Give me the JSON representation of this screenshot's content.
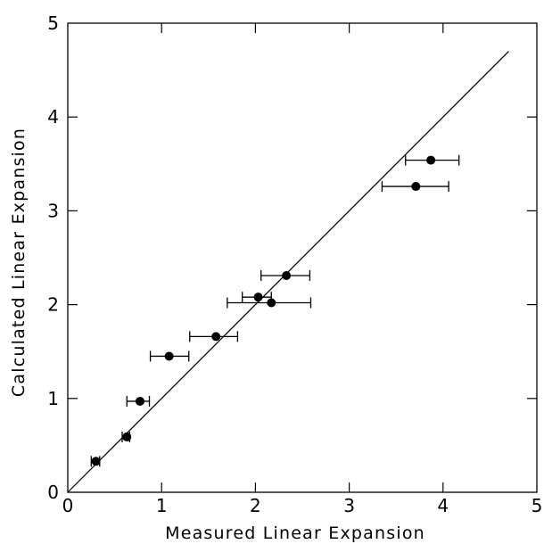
{
  "chart_data": {
    "type": "scatter",
    "title": "",
    "xlabel": "Measured Linear Expansion",
    "ylabel": "Calculated Linear Expansion",
    "xlim": [
      0,
      5
    ],
    "ylim": [
      0,
      5
    ],
    "xticks": [
      "0",
      "1",
      "2",
      "3",
      "4",
      "5"
    ],
    "yticks": [
      "0",
      "1",
      "2",
      "3",
      "4",
      "5"
    ],
    "grid": false,
    "reference_line": {
      "x": [
        0,
        4.7
      ],
      "y": [
        0,
        4.7
      ]
    },
    "points": [
      {
        "x": 0.3,
        "y": 0.33,
        "xerr_low": 0.25,
        "xerr_high": 0.34
      },
      {
        "x": 0.63,
        "y": 0.59,
        "xerr_low": 0.58,
        "xerr_high": 0.66
      },
      {
        "x": 0.77,
        "y": 0.97,
        "xerr_low": 0.63,
        "xerr_high": 0.87
      },
      {
        "x": 1.08,
        "y": 1.45,
        "xerr_low": 0.88,
        "xerr_high": 1.29
      },
      {
        "x": 1.58,
        "y": 1.66,
        "xerr_low": 1.3,
        "xerr_high": 1.81
      },
      {
        "x": 2.03,
        "y": 2.08,
        "xerr_low": 1.86,
        "xerr_high": 2.17
      },
      {
        "x": 2.17,
        "y": 2.02,
        "xerr_low": 1.7,
        "xerr_high": 2.59
      },
      {
        "x": 2.33,
        "y": 2.31,
        "xerr_low": 2.06,
        "xerr_high": 2.58
      },
      {
        "x": 3.71,
        "y": 3.26,
        "xerr_low": 3.35,
        "xerr_high": 4.06
      },
      {
        "x": 3.87,
        "y": 3.54,
        "xerr_low": 3.6,
        "xerr_high": 4.17
      }
    ]
  }
}
